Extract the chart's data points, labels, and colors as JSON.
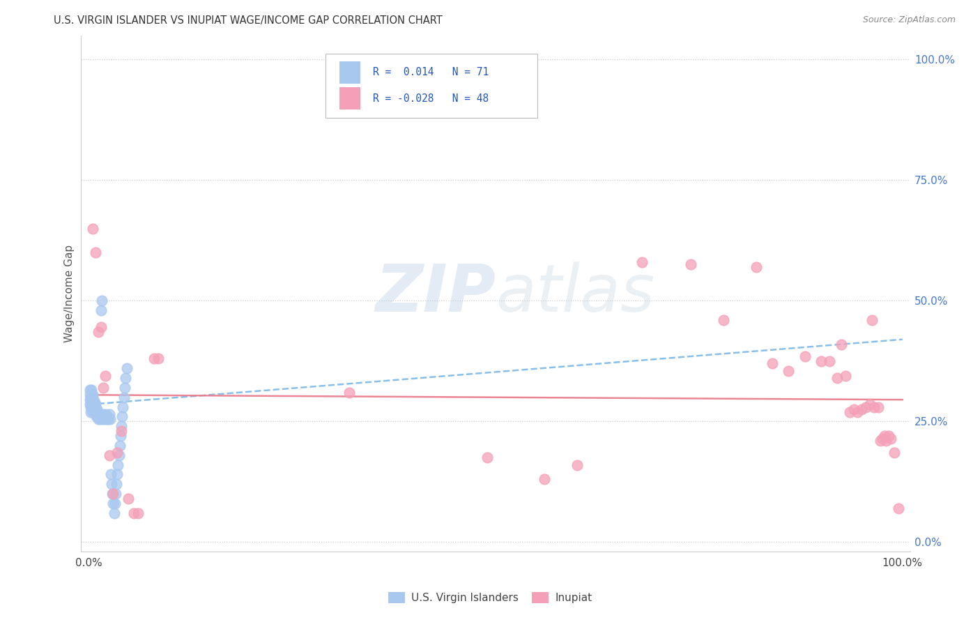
{
  "title": "U.S. VIRGIN ISLANDER VS INUPIAT WAGE/INCOME GAP CORRELATION CHART",
  "source": "Source: ZipAtlas.com",
  "ylabel": "Wage/Income Gap",
  "legend_label_blue": "U.S. Virgin Islanders",
  "legend_label_pink": "Inupiat",
  "r_blue": "0.014",
  "n_blue": "71",
  "r_pink": "-0.028",
  "n_pink": "48",
  "blue_color": "#a8c8f0",
  "pink_color": "#f4a0b8",
  "blue_line_color": "#7ab8e8",
  "pink_line_color": "#e87888",
  "watermark_zip": "ZIP",
  "watermark_atlas": "atlas",
  "blue_points_x": [
    0.001,
    0.001,
    0.001,
    0.001,
    0.002,
    0.002,
    0.002,
    0.002,
    0.003,
    0.003,
    0.003,
    0.003,
    0.004,
    0.004,
    0.004,
    0.004,
    0.005,
    0.005,
    0.005,
    0.005,
    0.006,
    0.006,
    0.006,
    0.007,
    0.007,
    0.007,
    0.008,
    0.008,
    0.008,
    0.009,
    0.009,
    0.01,
    0.01,
    0.011,
    0.011,
    0.012,
    0.012,
    0.013,
    0.014,
    0.015,
    0.016,
    0.017,
    0.018,
    0.019,
    0.02,
    0.021,
    0.022,
    0.023,
    0.024,
    0.025,
    0.026,
    0.027,
    0.028,
    0.029,
    0.03,
    0.031,
    0.032,
    0.033,
    0.034,
    0.035,
    0.036,
    0.037,
    0.038,
    0.039,
    0.04,
    0.041,
    0.042,
    0.043,
    0.044,
    0.045,
    0.047
  ],
  "blue_points_y": [
    0.285,
    0.295,
    0.305,
    0.315,
    0.27,
    0.28,
    0.29,
    0.3,
    0.285,
    0.295,
    0.305,
    0.315,
    0.275,
    0.285,
    0.295,
    0.305,
    0.27,
    0.28,
    0.295,
    0.305,
    0.275,
    0.285,
    0.295,
    0.27,
    0.28,
    0.29,
    0.265,
    0.275,
    0.285,
    0.26,
    0.27,
    0.265,
    0.275,
    0.26,
    0.27,
    0.255,
    0.265,
    0.26,
    0.255,
    0.48,
    0.5,
    0.255,
    0.265,
    0.26,
    0.255,
    0.265,
    0.255,
    0.26,
    0.255,
    0.265,
    0.255,
    0.14,
    0.12,
    0.1,
    0.08,
    0.06,
    0.08,
    0.1,
    0.12,
    0.14,
    0.16,
    0.18,
    0.2,
    0.22,
    0.24,
    0.26,
    0.28,
    0.3,
    0.32,
    0.34,
    0.36
  ],
  "pink_points_x": [
    0.005,
    0.008,
    0.012,
    0.015,
    0.018,
    0.02,
    0.025,
    0.03,
    0.035,
    0.04,
    0.048,
    0.055,
    0.06,
    0.08,
    0.085,
    0.32,
    0.49,
    0.56,
    0.6,
    0.68,
    0.74,
    0.78,
    0.82,
    0.84,
    0.86,
    0.88,
    0.9,
    0.91,
    0.92,
    0.925,
    0.93,
    0.935,
    0.94,
    0.945,
    0.95,
    0.955,
    0.96,
    0.963,
    0.965,
    0.97,
    0.973,
    0.975,
    0.978,
    0.98,
    0.983,
    0.986,
    0.99,
    0.995
  ],
  "pink_points_y": [
    0.65,
    0.6,
    0.435,
    0.445,
    0.32,
    0.345,
    0.18,
    0.1,
    0.185,
    0.23,
    0.09,
    0.06,
    0.06,
    0.38,
    0.38,
    0.31,
    0.175,
    0.13,
    0.16,
    0.58,
    0.575,
    0.46,
    0.57,
    0.37,
    0.355,
    0.385,
    0.375,
    0.375,
    0.34,
    0.41,
    0.345,
    0.27,
    0.275,
    0.27,
    0.275,
    0.28,
    0.285,
    0.46,
    0.28,
    0.28,
    0.21,
    0.215,
    0.22,
    0.21,
    0.22,
    0.215,
    0.185,
    0.07
  ],
  "ytick_vals": [
    0.0,
    0.25,
    0.5,
    0.75,
    1.0
  ],
  "ytick_labels": [
    "0.0%",
    "25.0%",
    "50.0%",
    "75.0%",
    "100.0%"
  ],
  "xlim": [
    -0.01,
    1.01
  ],
  "ylim": [
    -0.02,
    1.05
  ]
}
